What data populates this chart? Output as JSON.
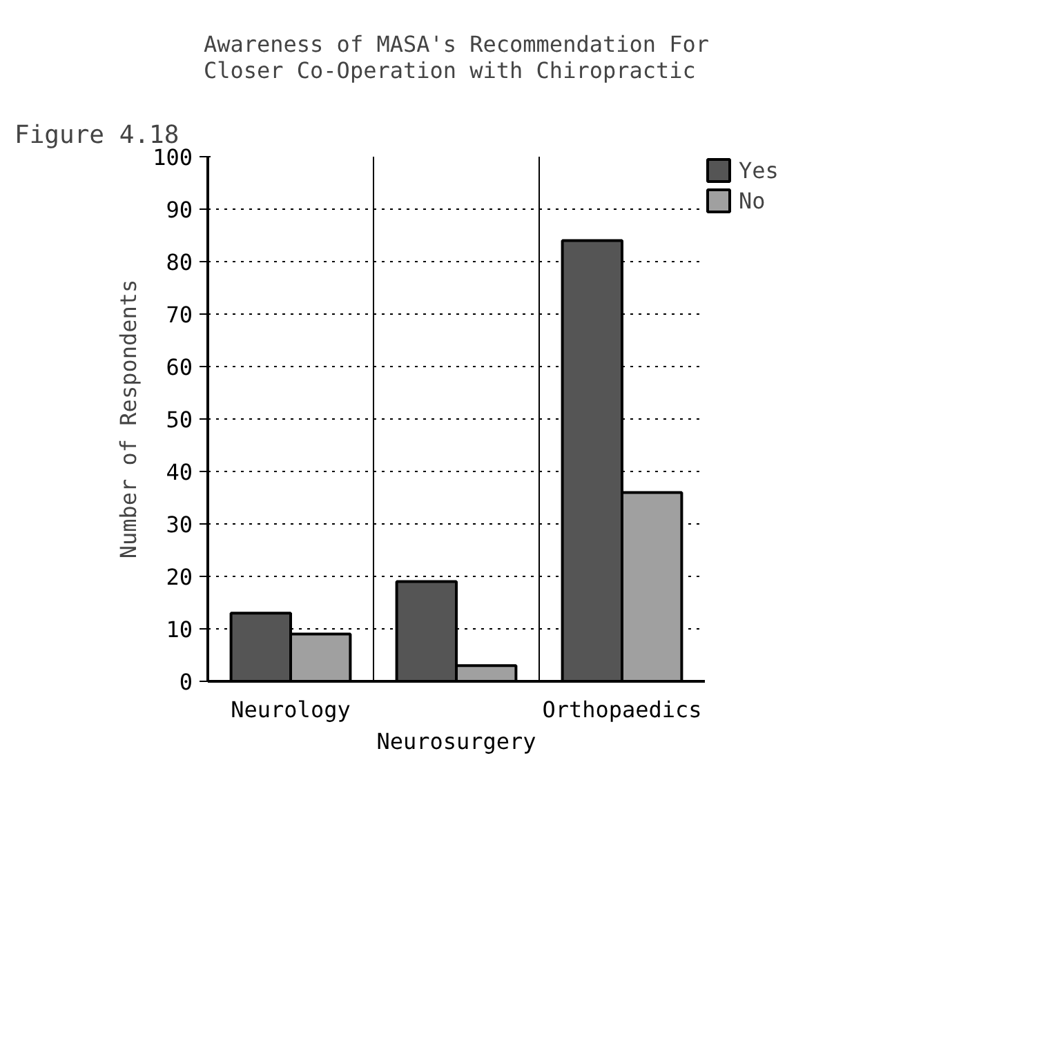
{
  "chart_data": {
    "type": "bar",
    "title": "Awareness of MASA's Recommendation For\nCloser Co-Operation with Chiropractic",
    "annotations": [
      "Figure 4.18"
    ],
    "ylabel": "Number of Respondents",
    "categories": [
      "Neurology",
      "Neurosurgery",
      "Orthopaedics"
    ],
    "series": [
      {
        "name": "Yes",
        "color": "#555555",
        "values": [
          13,
          19,
          84
        ]
      },
      {
        "name": "No",
        "color": "#a0a0a0",
        "values": [
          9,
          3,
          36
        ]
      }
    ],
    "ylim": [
      0,
      100
    ],
    "yticks": [
      0,
      10,
      20,
      30,
      40,
      50,
      60,
      70,
      80,
      90,
      100
    ],
    "grid": true,
    "legend": "top right"
  }
}
